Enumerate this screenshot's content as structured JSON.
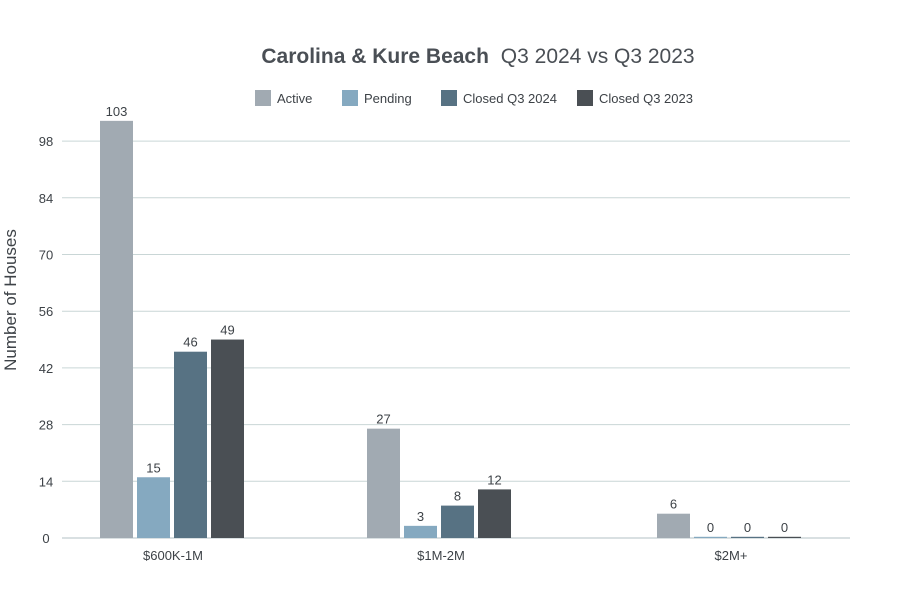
{
  "chart_data": {
    "type": "bar",
    "title_bold": "Carolina & Kure Beach",
    "title_rest": "Q3 2024 vs Q3 2023",
    "xlabel": "",
    "ylabel": "Number of Houses",
    "ylim": [
      0,
      105
    ],
    "yticks": [
      0,
      14,
      28,
      42,
      56,
      70,
      84,
      98
    ],
    "grid": true,
    "legend_position": "top",
    "categories": [
      "$600K-1M",
      "$1M-2M",
      "$2M+"
    ],
    "series": [
      {
        "name": "Active",
        "color": "#a1aab2",
        "values": [
          103,
          27,
          6
        ]
      },
      {
        "name": "Pending",
        "color": "#85a9c0",
        "values": [
          15,
          3,
          0
        ]
      },
      {
        "name": "Closed Q3 2024",
        "color": "#577283",
        "values": [
          46,
          8,
          0
        ]
      },
      {
        "name": "Closed Q3 2023",
        "color": "#4a4f54",
        "values": [
          49,
          12,
          0
        ]
      }
    ]
  }
}
